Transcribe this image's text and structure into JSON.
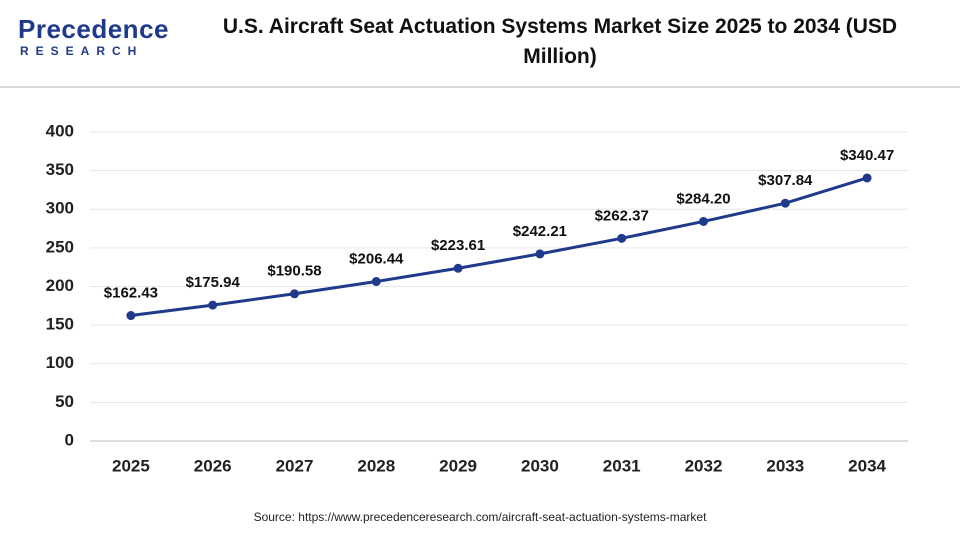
{
  "logo": {
    "name": "Precedence",
    "tagline": "RESEARCH"
  },
  "source": "Source: https://www.precedenceresearch.com/aircraft-seat-actuation-systems-market",
  "chart_data": {
    "type": "line",
    "title": "U.S. Aircraft Seat Actuation Systems Market Size 2025 to 2034 (USD Million)",
    "categories": [
      "2025",
      "2026",
      "2027",
      "2028",
      "2029",
      "2030",
      "2031",
      "2032",
      "2033",
      "2034"
    ],
    "series": [
      {
        "color": "#1f3a8a",
        "values": [
          162.43,
          175.94,
          190.58,
          206.44,
          223.61,
          242.21,
          262.37,
          284.2,
          307.84,
          340.47
        ],
        "value_labels": [
          "$162.43",
          "$175.94",
          "$190.58",
          "$206.44",
          "$223.61",
          "$242.21",
          "$262.37",
          "$284.20",
          "$307.84",
          "$340.47"
        ]
      }
    ],
    "ylim": [
      0,
      400
    ],
    "yticks": [
      0,
      50,
      100,
      150,
      200,
      250,
      300,
      350,
      400
    ],
    "grid": true
  }
}
